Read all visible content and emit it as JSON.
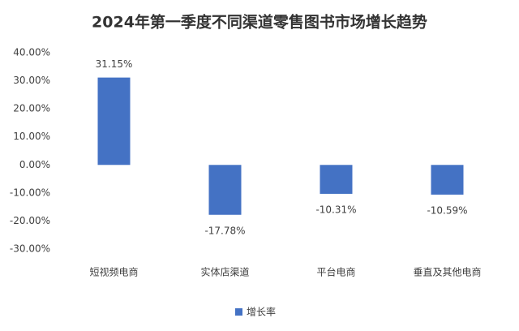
{
  "chart_data": {
    "type": "bar",
    "title": "2024年第一季度不同渠道零售图书市场增长趋势",
    "categories": [
      "短视频电商",
      "实体店渠道",
      "平台电商",
      "垂直及其他电商"
    ],
    "series": [
      {
        "name": "增长率",
        "color": "#4472c4",
        "values": [
          31.15,
          -17.78,
          -10.31,
          -10.59
        ],
        "value_labels": [
          "31.15%",
          "-17.78%",
          "-10.31%",
          "-10.59%"
        ]
      }
    ],
    "ylim": [
      -30,
      40
    ],
    "yticks": [
      {
        "value": -30,
        "label": "-30.00%"
      },
      {
        "value": -20,
        "label": "-20.00%"
      },
      {
        "value": -10,
        "label": "-10.00%"
      },
      {
        "value": 0,
        "label": "0.00%"
      },
      {
        "value": 10,
        "label": "10.00%"
      },
      {
        "value": 20,
        "label": "20.00%"
      },
      {
        "value": 30,
        "label": "30.00%"
      },
      {
        "value": 40,
        "label": "40.00%"
      }
    ],
    "grid": false,
    "legend": "bottom"
  }
}
